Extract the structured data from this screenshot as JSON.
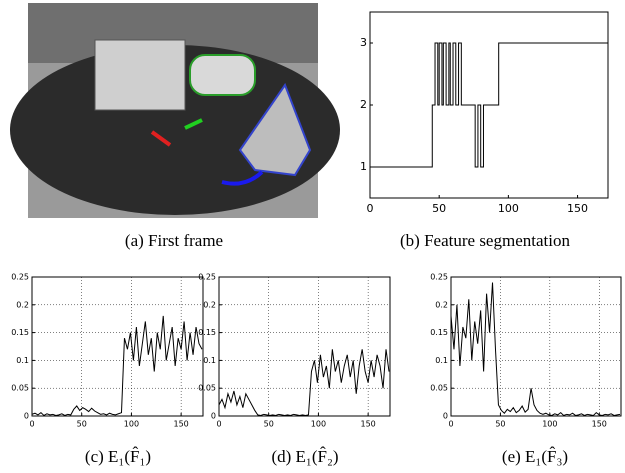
{
  "figure": {
    "image_caption": "(a) First frame"
  },
  "chart_data": [
    {
      "type": "line",
      "caption": "(b) Feature segmentation",
      "color": "#000000",
      "grid": false,
      "xlim": [
        0,
        172
      ],
      "xticks": [
        0,
        50,
        100,
        150
      ],
      "ylim": [
        0.5,
        3.5
      ],
      "yticks": [
        1,
        2,
        3
      ],
      "x": [
        0,
        45,
        45,
        47,
        47,
        49,
        49,
        50,
        50,
        52,
        52,
        53,
        53,
        55,
        55,
        57,
        57,
        58,
        58,
        60,
        60,
        62,
        62,
        64,
        64,
        66,
        66,
        76,
        76,
        78,
        78,
        80,
        80,
        82,
        82,
        93,
        93,
        172
      ],
      "values": [
        1,
        1,
        2,
        2,
        3,
        3,
        2,
        2,
        3,
        3,
        2,
        2,
        3,
        3,
        2,
        2,
        3,
        3,
        2,
        2,
        3,
        3,
        2,
        2,
        3,
        3,
        2,
        2,
        1,
        1,
        2,
        2,
        1,
        1,
        2,
        2,
        3,
        3
      ]
    },
    {
      "type": "line",
      "caption": "(c) E₁(F̂₁)",
      "color": "#000000",
      "grid": true,
      "xlim": [
        0,
        172
      ],
      "xticks": [
        0,
        50,
        100,
        150
      ],
      "ylim": [
        0,
        0.25
      ],
      "yticks": [
        0,
        0.05,
        0.1,
        0.15,
        0.2,
        0.25
      ],
      "x": [
        0,
        3,
        6,
        9,
        12,
        15,
        18,
        21,
        24,
        27,
        30,
        33,
        36,
        39,
        42,
        45,
        48,
        51,
        54,
        57,
        60,
        63,
        66,
        69,
        72,
        75,
        78,
        81,
        84,
        87,
        90,
        93,
        96,
        99,
        102,
        105,
        108,
        111,
        114,
        117,
        120,
        123,
        126,
        129,
        132,
        135,
        138,
        141,
        144,
        147,
        150,
        153,
        156,
        159,
        162,
        165,
        168,
        171
      ],
      "values": [
        0.003,
        0.005,
        0.002,
        0.006,
        0.001,
        0.004,
        0.002,
        0.003,
        0.001,
        0.002,
        0.004,
        0.001,
        0.003,
        0.002,
        0.012,
        0.018,
        0.01,
        0.015,
        0.012,
        0.008,
        0.014,
        0.009,
        0.006,
        0.003,
        0.004,
        0.002,
        0.005,
        0.003,
        0.002,
        0.004,
        0.006,
        0.14,
        0.12,
        0.15,
        0.1,
        0.16,
        0.09,
        0.13,
        0.17,
        0.11,
        0.14,
        0.08,
        0.15,
        0.12,
        0.18,
        0.1,
        0.13,
        0.16,
        0.09,
        0.14,
        0.12,
        0.17,
        0.1,
        0.15,
        0.11,
        0.16,
        0.13,
        0.12
      ]
    },
    {
      "type": "line",
      "caption": "(d) E₁(F̂₂)",
      "color": "#000000",
      "grid": true,
      "xlim": [
        0,
        172
      ],
      "xticks": [
        0,
        50,
        100,
        150
      ],
      "ylim": [
        0,
        0.25
      ],
      "yticks": [
        0,
        0.05,
        0.1,
        0.15,
        0.2,
        0.25
      ],
      "x": [
        0,
        3,
        6,
        9,
        12,
        15,
        18,
        21,
        24,
        27,
        30,
        33,
        36,
        39,
        42,
        45,
        48,
        51,
        54,
        57,
        60,
        63,
        66,
        69,
        72,
        75,
        78,
        81,
        84,
        87,
        90,
        93,
        96,
        99,
        102,
        105,
        108,
        111,
        114,
        117,
        120,
        123,
        126,
        129,
        132,
        135,
        138,
        141,
        144,
        147,
        150,
        153,
        156,
        159,
        162,
        165,
        168,
        171
      ],
      "values": [
        0.02,
        0.03,
        0.015,
        0.04,
        0.025,
        0.045,
        0.02,
        0.035,
        0.015,
        0.04,
        0.03,
        0.02,
        0.01,
        0.002,
        0.001,
        0.003,
        0.002,
        0.001,
        0.002,
        0.001,
        0.003,
        0.002,
        0.001,
        0.002,
        0.001,
        0.003,
        0.002,
        0.001,
        0.002,
        0.001,
        0.002,
        0.08,
        0.1,
        0.06,
        0.11,
        0.07,
        0.09,
        0.05,
        0.12,
        0.08,
        0.1,
        0.06,
        0.09,
        0.11,
        0.07,
        0.1,
        0.04,
        0.09,
        0.12,
        0.08,
        0.06,
        0.1,
        0.07,
        0.11,
        0.09,
        0.05,
        0.12,
        0.08
      ]
    },
    {
      "type": "line",
      "caption": "(e) E₁(F̂₃)",
      "color": "#000000",
      "grid": true,
      "xlim": [
        0,
        172
      ],
      "xticks": [
        0,
        50,
        100,
        150
      ],
      "ylim": [
        0,
        0.25
      ],
      "yticks": [
        0,
        0.05,
        0.1,
        0.15,
        0.2,
        0.25
      ],
      "x": [
        0,
        3,
        6,
        9,
        12,
        15,
        18,
        21,
        24,
        27,
        30,
        33,
        36,
        39,
        42,
        45,
        48,
        51,
        54,
        57,
        60,
        63,
        66,
        69,
        72,
        75,
        78,
        81,
        84,
        87,
        90,
        93,
        96,
        99,
        102,
        105,
        108,
        111,
        114,
        117,
        120,
        123,
        126,
        129,
        132,
        135,
        138,
        141,
        144,
        147,
        150,
        153,
        156,
        159,
        162,
        165,
        168,
        171
      ],
      "values": [
        0.18,
        0.12,
        0.2,
        0.09,
        0.16,
        0.14,
        0.21,
        0.1,
        0.17,
        0.13,
        0.19,
        0.08,
        0.22,
        0.15,
        0.24,
        0.12,
        0.02,
        0.01,
        0.005,
        0.012,
        0.008,
        0.015,
        0.006,
        0.01,
        0.018,
        0.007,
        0.012,
        0.05,
        0.02,
        0.01,
        0.005,
        0.003,
        0.005,
        0.002,
        0.001,
        0.004,
        0.002,
        0.006,
        0.001,
        0.003,
        0.002,
        0.005,
        0.001,
        0.002,
        0.004,
        0.001,
        0.003,
        0.002,
        0.001,
        0.006,
        0.002,
        0.001,
        0.003,
        0.002,
        0.004,
        0.001,
        0.002,
        0.003
      ]
    }
  ]
}
